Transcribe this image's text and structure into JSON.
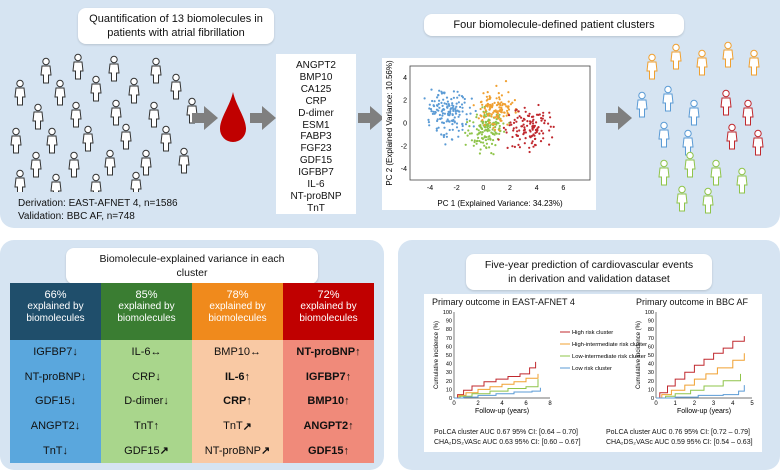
{
  "top": {
    "quant_title_line1": "Quantification of 13 biomolecules in",
    "quant_title_line2": "patients with atrial fibrillation",
    "derivation": "Derivation:  EAST-AFNET 4, n=1586",
    "validation": "Validation:  BBC AF, n=748",
    "biomolecules": [
      "ANGPT2",
      "BMP10",
      "CA125",
      "CRP",
      "D-dimer",
      "ESM1",
      "FABP3",
      "FGF23",
      "GDF15",
      "IGFBP7",
      "IL-6",
      "NT-proBNP",
      "TnT"
    ],
    "clusters_title": "Four biomolecule-defined patient clusters",
    "pca": {
      "xlabel": "PC 1 (Explained Variance: 34.23%)",
      "ylabel": "PC 2 (Explained Variance: 10.56%)",
      "xticks": [
        "-4",
        "-2",
        "0",
        "2",
        "4",
        "6"
      ],
      "yticks": [
        "4",
        "2",
        "0",
        "-2",
        "-4"
      ]
    },
    "colors": {
      "blue": "#5b9bd5",
      "green": "#8fc44a",
      "orange": "#f0a030",
      "red": "#c0282e",
      "drop": "#c00000",
      "arrow": "#7f7f7f"
    }
  },
  "variance": {
    "title_line1": "Biomolecule-explained variance in each",
    "title_line2": "cluster",
    "columns": [
      {
        "pct": "66%",
        "line2": "explained by",
        "line3": "biomolecules",
        "head_color": "#1f4e6b",
        "cell_color": "#5aa7dd",
        "items": [
          {
            "name": "IGFBP7",
            "arrow": "↓",
            "bold": false
          },
          {
            "name": "NT-proBNP",
            "arrow": "↓",
            "bold": false
          },
          {
            "name": "GDF15",
            "arrow": "↓",
            "bold": false
          },
          {
            "name": "ANGPT2",
            "arrow": "↓",
            "bold": false
          },
          {
            "name": "TnT",
            "arrow": "↓",
            "bold": false
          }
        ]
      },
      {
        "pct": "85%",
        "line2": "explained by",
        "line3": "biomolecules",
        "head_color": "#3a7d32",
        "cell_color": "#a9d68c",
        "items": [
          {
            "name": "IL-6",
            "arrow": "↔",
            "bold": false
          },
          {
            "name": "CRP",
            "arrow": "↓",
            "bold": false
          },
          {
            "name": "D-dimer",
            "arrow": "↓",
            "bold": false
          },
          {
            "name": "TnT",
            "arrow": "↑",
            "bold": false
          },
          {
            "name": "GDF15",
            "arrow": "↗",
            "bold": false
          }
        ]
      },
      {
        "pct": "78%",
        "line2": "explained by",
        "line3": "biomolecules",
        "head_color": "#f08a1c",
        "cell_color": "#f9c9a4",
        "items": [
          {
            "name": "BMP10",
            "arrow": "↔",
            "bold": false
          },
          {
            "name": "IL-6",
            "arrow": "↑",
            "bold": true
          },
          {
            "name": "CRP",
            "arrow": "↑",
            "bold": true
          },
          {
            "name": "TnT",
            "arrow": "↗",
            "bold": false
          },
          {
            "name": "NT-proBNP",
            "arrow": "↗",
            "bold": false
          }
        ]
      },
      {
        "pct": "72%",
        "line2": "explained by",
        "line3": "biomolecules",
        "head_color": "#c00000",
        "cell_color": "#f08a7a",
        "items": [
          {
            "name": "NT-proBNP",
            "arrow": "↑",
            "bold": true
          },
          {
            "name": "IGFBP7",
            "arrow": "↑",
            "bold": true
          },
          {
            "name": "BMP10",
            "arrow": "↑",
            "bold": true
          },
          {
            "name": "ANGPT2",
            "arrow": "↑",
            "bold": true
          },
          {
            "name": "GDF15",
            "arrow": "↑",
            "bold": true
          }
        ]
      }
    ]
  },
  "prediction": {
    "title_line1": "Five-year prediction of cardiovascular events",
    "title_line2": "in derivation and validation dataset",
    "left_plot_title": "Primary outcome in EAST-AFNET 4",
    "right_plot_title": "Primary outcome in BBC AF",
    "ylabel": "Cumulative incidence (%)",
    "xlabel": "Follow-up (years)",
    "left_xticks": [
      "0",
      "2",
      "4",
      "6",
      "8"
    ],
    "right_xticks": [
      "0",
      "1",
      "2",
      "3",
      "4",
      "5"
    ],
    "yticks": [
      "100",
      "90",
      "80",
      "70",
      "60",
      "50",
      "40",
      "30",
      "20",
      "10",
      "0"
    ],
    "legend": [
      {
        "label": "High risk cluster",
        "color": "#c0282e"
      },
      {
        "label": "High-intermediate risk cluster",
        "color": "#f0a030"
      },
      {
        "label": "Low-intermediate risk cluster",
        "color": "#8fc44a"
      },
      {
        "label": "Low risk cluster",
        "color": "#5b9bd5"
      }
    ],
    "left_stats_1": "PoLCA  cluster  AUC  0.67 95% CI:  [0.64 – 0.70]",
    "left_stats_2": "CHA₂DS₂VASc  AUC  0.63 95% CI:  [0.60 – 0.67]",
    "right_stats_1": "PoLCA  cluster  AUC  0.76 95% CI:  [0.72 – 0.79]",
    "right_stats_2": "CHA₂DS₂VASc  AUC  0.59 95% CI:  [0.54 – 0.63]"
  }
}
